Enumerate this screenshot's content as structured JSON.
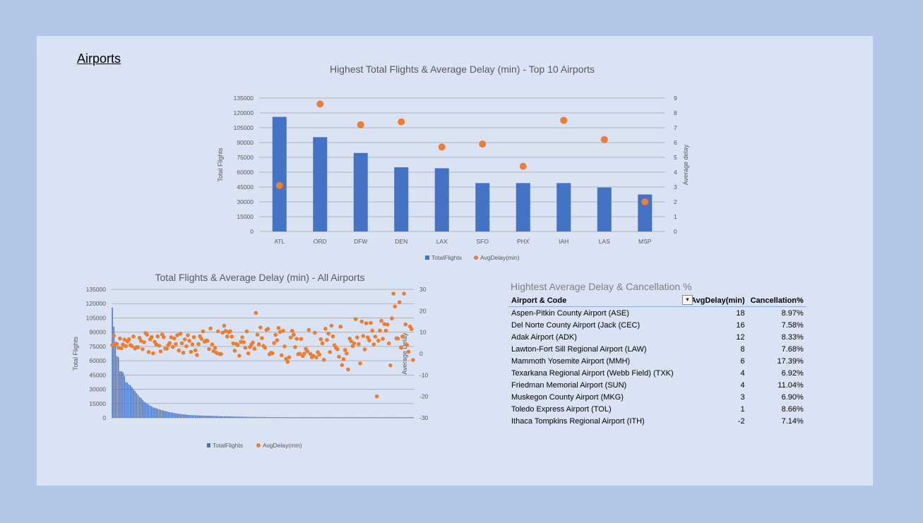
{
  "page": {
    "title": "Airports"
  },
  "colors": {
    "bar": "#4472c4",
    "dot": "#ed7d31",
    "grid": "#a6a6a6",
    "text": "#595959"
  },
  "chart_data": [
    {
      "type": "bar",
      "title": "Highest Total Flights & Average Delay (min) - Top 10 Airports",
      "categories": [
        "ATL",
        "ORD",
        "DFW",
        "DEN",
        "LAX",
        "SFO",
        "PHX",
        "IAH",
        "LAS",
        "MSP"
      ],
      "series": [
        {
          "name": "TotalFlights",
          "axis": "left",
          "values": [
            116000,
            95500,
            79500,
            65000,
            64000,
            49000,
            49000,
            49000,
            44500,
            37500
          ]
        },
        {
          "name": "AvgDelay(min)",
          "axis": "right",
          "values": [
            3.1,
            8.6,
            7.2,
            7.4,
            5.7,
            5.9,
            4.4,
            7.5,
            6.2,
            2.0
          ]
        }
      ],
      "ylabel": "Total Flights",
      "y2label": "Average delay",
      "ylim": [
        0,
        135000
      ],
      "y2lim": [
        0,
        9
      ],
      "yticks": [
        "0",
        "15000",
        "30000",
        "45000",
        "60000",
        "75000",
        "90000",
        "105000",
        "120000",
        "135000"
      ],
      "y2ticks": [
        "0",
        "1",
        "2",
        "3",
        "4",
        "5",
        "6",
        "7",
        "8",
        "9"
      ],
      "legend": [
        "TotalFlights",
        "AvgDelay(min)"
      ],
      "legend_position": "bottom"
    },
    {
      "type": "bar",
      "title": "Total Flights & Average Delay (min) - All Airports",
      "n_airports": 200,
      "flights_head": [
        116000,
        96000,
        80000,
        65000,
        64000,
        49000,
        49000,
        48000,
        44000,
        37500,
        37000,
        35000,
        34000,
        32000,
        30000,
        28000,
        26000,
        24000,
        22000,
        21000,
        19000,
        17000,
        16000,
        15000,
        14000,
        13000,
        12000,
        11000,
        10500,
        10000,
        9500,
        9000,
        8500,
        8000,
        7600,
        7200,
        6800,
        6400,
        6000,
        5700,
        5400,
        5100,
        4800,
        4500,
        4300,
        4100,
        3900,
        3700,
        3500,
        3300
      ],
      "flights_tail_start": 3100,
      "flights_tail_decay": 0.975,
      "delay_values": [
        4,
        8,
        7,
        6,
        3,
        7,
        5,
        2,
        6,
        4,
        7,
        5,
        3,
        6,
        8,
        4,
        2,
        5,
        7,
        6
      ],
      "delay_outliers": [
        {
          "i": 95,
          "v": 19
        },
        {
          "i": 175,
          "v": -20
        },
        {
          "i": 186,
          "v": 28
        },
        {
          "i": 193,
          "v": 28
        },
        {
          "i": 190,
          "v": 24
        },
        {
          "i": 187,
          "v": 22
        },
        {
          "i": 110,
          "v": 12
        }
      ],
      "ylabel": "Total Flights",
      "y2label": "Average Delay",
      "ylim": [
        0,
        135000
      ],
      "y2lim": [
        -30,
        30
      ],
      "yticks": [
        "0",
        "15000",
        "30000",
        "45000",
        "60000",
        "75000",
        "90000",
        "105000",
        "120000",
        "135000"
      ],
      "y2ticks": [
        "-30",
        "-20",
        "-10",
        "0",
        "10",
        "20",
        "30"
      ],
      "legend": [
        "TotalFlights",
        "AvgDelay(min)"
      ],
      "legend_position": "bottom"
    }
  ],
  "table": {
    "title": "Hightest Average Delay & Cancellation %",
    "headers": [
      "Airport & Code",
      "AvgDelay(min)",
      "Cancellation%"
    ],
    "rows": [
      [
        "Aspen-Pitkin County Airport (ASE)",
        "18",
        "8.97%"
      ],
      [
        "Del Norte County Airport (Jack (CEC)",
        "16",
        "7.58%"
      ],
      [
        "Adak Airport (ADK)",
        "12",
        "8.33%"
      ],
      [
        "Lawton-Fort Sill Regional Airport (LAW)",
        "8",
        "7.68%"
      ],
      [
        "Mammoth Yosemite Airport (MMH)",
        "6",
        "17.39%"
      ],
      [
        "Texarkana Regional Airport (Webb Field) (TXK)",
        "4",
        "6.92%"
      ],
      [
        "Friedman Memorial Airport (SUN)",
        "4",
        "11.04%"
      ],
      [
        "Muskegon County Airport (MKG)",
        "3",
        "6.90%"
      ],
      [
        "Toledo Express Airport (TOL)",
        "1",
        "8.66%"
      ],
      [
        "Ithaca Tompkins Regional Airport (ITH)",
        "-2",
        "7.14%"
      ]
    ]
  }
}
